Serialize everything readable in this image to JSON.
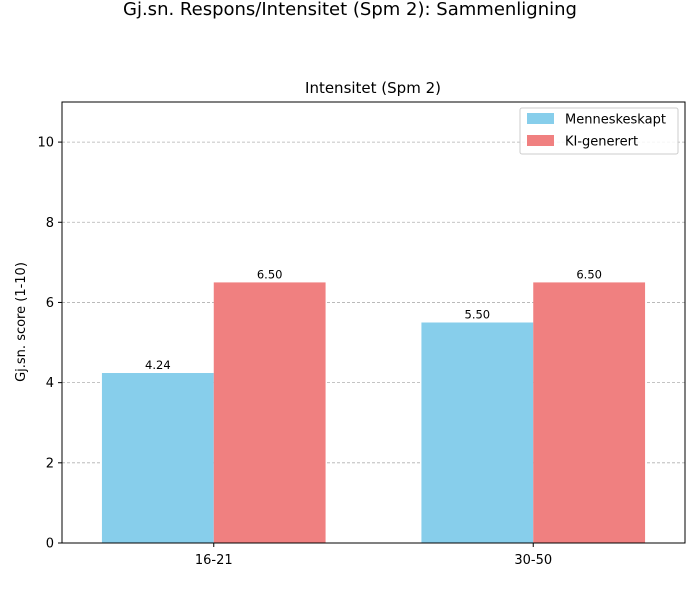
{
  "figure": {
    "suptitle": "Gj.sn. Respons/Intensitet (Spm 2): Sammenligning"
  },
  "chart_data": {
    "type": "bar",
    "title": "Intensitet (Spm 2)",
    "xlabel": "",
    "ylabel": "Gj.sn. score (1-10)",
    "categories": [
      "16-21",
      "30-50"
    ],
    "series": [
      {
        "name": "Menneskeskapt",
        "color": "#87CEEB",
        "values": [
          4.24,
          5.5
        ]
      },
      {
        "name": "KI-generert",
        "color": "#F08080",
        "values": [
          6.5,
          6.5
        ]
      }
    ],
    "value_labels": [
      [
        "4.24",
        "5.50"
      ],
      [
        "6.50",
        "6.50"
      ]
    ],
    "ylim": [
      0,
      11
    ],
    "yticks": [
      0,
      2,
      4,
      6,
      8,
      10
    ],
    "grid": "y-dashed",
    "legend": "top-right"
  }
}
